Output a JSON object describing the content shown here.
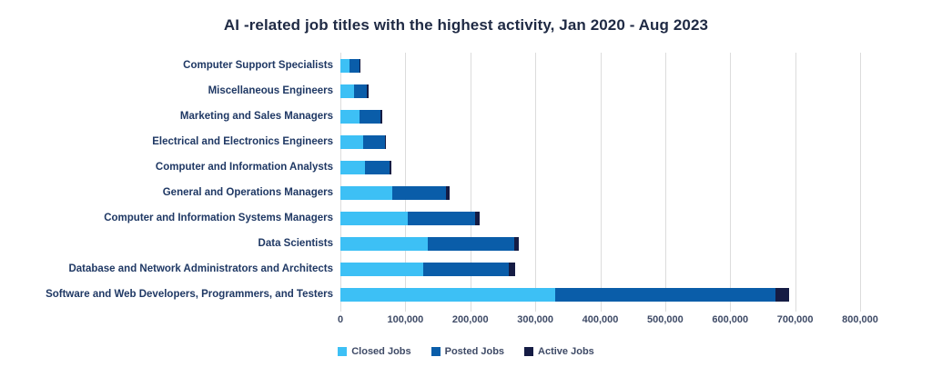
{
  "chart_data": {
    "type": "bar",
    "orientation": "horizontal",
    "stacked": true,
    "title": "AI -related job titles with the highest activity, Jan 2020 - Aug 2023",
    "categories": [
      "Computer Support Specialists",
      "Miscellaneous Engineers",
      "Marketing and Sales Managers",
      "Electrical and Electronics Engineers",
      "Computer and Information Analysts",
      "General and Operations Managers",
      "Computer and Information Systems Managers",
      "Data Scientists",
      "Database and Network Administrators and Architects",
      "Software and Web Developers, Programmers, and Testers"
    ],
    "series": [
      {
        "name": "Closed Jobs",
        "color": "#3DC0F5",
        "values": [
          14000,
          21000,
          29000,
          35000,
          38000,
          80000,
          104000,
          134000,
          128000,
          330000
        ]
      },
      {
        "name": "Posted Jobs",
        "color": "#0A5DA9",
        "values": [
          15000,
          20000,
          33000,
          33000,
          38000,
          82000,
          104000,
          133000,
          131000,
          340000
        ]
      },
      {
        "name": "Active Jobs",
        "color": "#151C44",
        "values": [
          2000,
          2000,
          2000,
          2000,
          2000,
          6000,
          7000,
          7000,
          10000,
          21000
        ]
      }
    ],
    "xlim": [
      0,
      800000
    ],
    "x_tick_interval": 100000,
    "x_tick_labels": [
      "0",
      "100,000",
      "200,000",
      "300,000",
      "400,000",
      "500,000",
      "600,000",
      "700,000",
      "800,000"
    ],
    "grid": true,
    "legend_position": "bottom",
    "style_colors": {
      "title_text": "#1F2A44",
      "category_label_text": "#1F3864",
      "axis_tick_text": "#3E4A66",
      "legend_text": "#3E4A66",
      "gridline": "#DCDCDC",
      "background": "#FFFFFF"
    }
  }
}
